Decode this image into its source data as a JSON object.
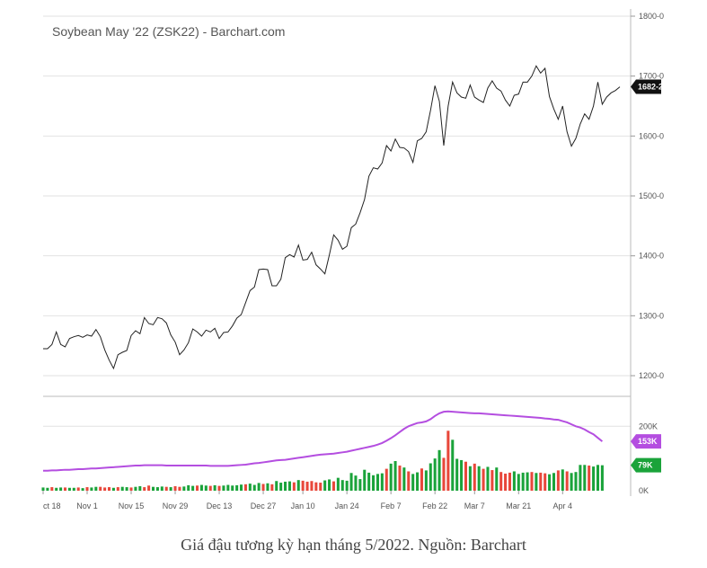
{
  "caption": "Giá đậu tương kỳ hạn tháng 5/2022. Nguồn: Barchart",
  "colors": {
    "price_line": "#222222",
    "volume_up": "#1aa33a",
    "volume_down": "#e8473a",
    "average_line": "#b44ee0",
    "last_badge": "#111111",
    "avg_badge": "#b44ee0",
    "vol_badge": "#1aa33a"
  },
  "chart_data": [
    {
      "type": "line",
      "title": "Soybean May '22 (ZSK22) - Barchart.com",
      "ylim": [
        1160,
        1800
      ],
      "yticks": [
        {
          "value": 1200,
          "label": "1200-0"
        },
        {
          "value": 1300,
          "label": "1300-0"
        },
        {
          "value": 1400,
          "label": "1400-0"
        },
        {
          "value": 1500,
          "label": "1500-0"
        },
        {
          "value": 1600,
          "label": "1600-0"
        },
        {
          "value": 1700,
          "label": "1700-0"
        },
        {
          "value": 1800,
          "label": "1800-0"
        }
      ],
      "last_value": 1682.25,
      "last_label": "1682-2",
      "series": [
        {
          "values": [
            1245,
            1245,
            1252,
            1273,
            1252,
            1248,
            1262,
            1265,
            1267,
            1264,
            1268,
            1266,
            1277,
            1265,
            1243,
            1226,
            1212,
            1235,
            1239,
            1242,
            1267,
            1275,
            1270,
            1297,
            1287,
            1285,
            1297,
            1295,
            1288,
            1268,
            1256,
            1235,
            1243,
            1255,
            1278,
            1273,
            1266,
            1276,
            1273,
            1279,
            1262,
            1272,
            1273,
            1283,
            1296,
            1302,
            1322,
            1342,
            1348,
            1377,
            1378,
            1377,
            1350,
            1350,
            1361,
            1397,
            1402,
            1398,
            1418,
            1393,
            1394,
            1406,
            1385,
            1378,
            1370,
            1401,
            1435,
            1426,
            1411,
            1416,
            1447,
            1453,
            1472,
            1494,
            1533,
            1547,
            1545,
            1555,
            1584,
            1575,
            1595,
            1581,
            1580,
            1574,
            1556,
            1592,
            1596,
            1607,
            1643,
            1684,
            1658,
            1584,
            1650,
            1690,
            1672,
            1665,
            1663,
            1685,
            1665,
            1660,
            1656,
            1680,
            1692,
            1680,
            1675,
            1660,
            1650,
            1668,
            1670,
            1690,
            1690,
            1700,
            1717,
            1705,
            1713,
            1666,
            1645,
            1628,
            1650,
            1607,
            1583,
            1596,
            1620,
            1637,
            1628,
            1650,
            1690,
            1653,
            1665,
            1672,
            1676,
            1682
          ]
        }
      ]
    },
    {
      "type": "bar",
      "title": "",
      "ylim": [
        0,
        290
      ],
      "yticks": [
        {
          "value": 0,
          "label": "0K"
        },
        {
          "value": 200,
          "label": "200K"
        }
      ],
      "last_label": "79K",
      "average_last_label": "153K",
      "x_labels": [
        "ct 18",
        "Nov 1",
        "Nov 15",
        "Nov 29",
        "Dec 13",
        "Dec 27",
        "Jan 10",
        "Jan 24",
        "Feb 7",
        "Feb 22",
        "Mar 7",
        "Mar 21",
        "Apr 4"
      ],
      "x_label_index": [
        0,
        10,
        20,
        30,
        40,
        50,
        59,
        69,
        79,
        89,
        98,
        108,
        118
      ],
      "series": [
        {
          "name": "volume",
          "values": [
            10,
            9,
            11,
            9,
            10,
            10,
            9,
            9,
            10,
            8,
            11,
            10,
            12,
            12,
            10,
            11,
            9,
            11,
            12,
            11,
            10,
            12,
            14,
            11,
            16,
            12,
            11,
            13,
            12,
            11,
            14,
            12,
            13,
            17,
            15,
            16,
            18,
            16,
            15,
            17,
            15,
            16,
            18,
            16,
            17,
            19,
            20,
            22,
            18,
            24,
            21,
            23,
            20,
            30,
            25,
            28,
            29,
            26,
            33,
            31,
            28,
            30,
            26,
            25,
            32,
            35,
            29,
            40,
            33,
            31,
            55,
            47,
            36,
            65,
            56,
            48,
            52,
            54,
            68,
            84,
            92,
            78,
            72,
            60,
            52,
            57,
            69,
            63,
            85,
            100,
            126,
            102,
            186,
            158,
            99,
            95,
            90,
            76,
            84,
            76,
            68,
            74,
            64,
            72,
            58,
            53,
            56,
            60,
            52,
            56,
            57,
            58,
            55,
            56,
            54,
            51,
            55,
            63,
            66,
            60,
            55,
            58,
            80,
            80,
            78,
            75,
            80,
            79
          ],
          "direction": [
            "u",
            "u",
            "d",
            "u",
            "u",
            "d",
            "u",
            "u",
            "d",
            "u",
            "d",
            "u",
            "u",
            "d",
            "d",
            "d",
            "u",
            "d",
            "u",
            "u",
            "d",
            "u",
            "u",
            "d",
            "d",
            "u",
            "u",
            "u",
            "d",
            "u",
            "d",
            "d",
            "u",
            "u",
            "u",
            "d",
            "u",
            "u",
            "d",
            "u",
            "d",
            "u",
            "u",
            "u",
            "u",
            "u",
            "d",
            "u",
            "u",
            "u",
            "d",
            "u",
            "d",
            "u",
            "u",
            "u",
            "u",
            "d",
            "u",
            "d",
            "d",
            "d",
            "d",
            "d",
            "u",
            "u",
            "d",
            "u",
            "u",
            "u",
            "u",
            "u",
            "u",
            "u",
            "u",
            "u",
            "u",
            "u",
            "d",
            "u",
            "u",
            "d",
            "u",
            "d",
            "u",
            "u",
            "d",
            "u",
            "u",
            "u",
            "u",
            "d",
            "d",
            "u",
            "u",
            "u",
            "d",
            "u",
            "d",
            "u",
            "d",
            "u",
            "d",
            "u",
            "d",
            "d",
            "d",
            "u",
            "u",
            "u",
            "u",
            "d",
            "u",
            "d",
            "d",
            "u",
            "u",
            "d",
            "u",
            "d",
            "u",
            "u",
            "u",
            "u",
            "d",
            "u",
            "u",
            "u"
          ]
        },
        {
          "name": "average",
          "values": [
            62,
            62,
            63,
            63,
            64,
            65,
            65,
            66,
            67,
            67,
            68,
            69,
            69,
            70,
            71,
            72,
            73,
            74,
            75,
            76,
            77,
            78,
            78,
            79,
            79,
            79,
            79,
            79,
            78,
            78,
            78,
            78,
            78,
            78,
            78,
            78,
            78,
            78,
            77,
            77,
            77,
            77,
            77,
            78,
            79,
            80,
            81,
            83,
            85,
            86,
            88,
            90,
            92,
            94,
            95,
            96,
            98,
            100,
            102,
            104,
            106,
            108,
            110,
            112,
            113,
            114,
            115,
            117,
            119,
            121,
            124,
            127,
            130,
            133,
            136,
            139,
            143,
            148,
            155,
            163,
            172,
            182,
            192,
            200,
            205,
            210,
            212,
            215,
            222,
            232,
            240,
            245,
            246,
            245,
            244,
            243,
            242,
            241,
            240,
            240,
            239,
            238,
            237,
            236,
            235,
            234,
            233,
            232,
            231,
            230,
            229,
            228,
            227,
            226,
            224,
            223,
            221,
            220,
            216,
            212,
            206,
            200,
            196,
            190,
            182,
            175,
            164,
            153
          ]
        }
      ]
    }
  ]
}
